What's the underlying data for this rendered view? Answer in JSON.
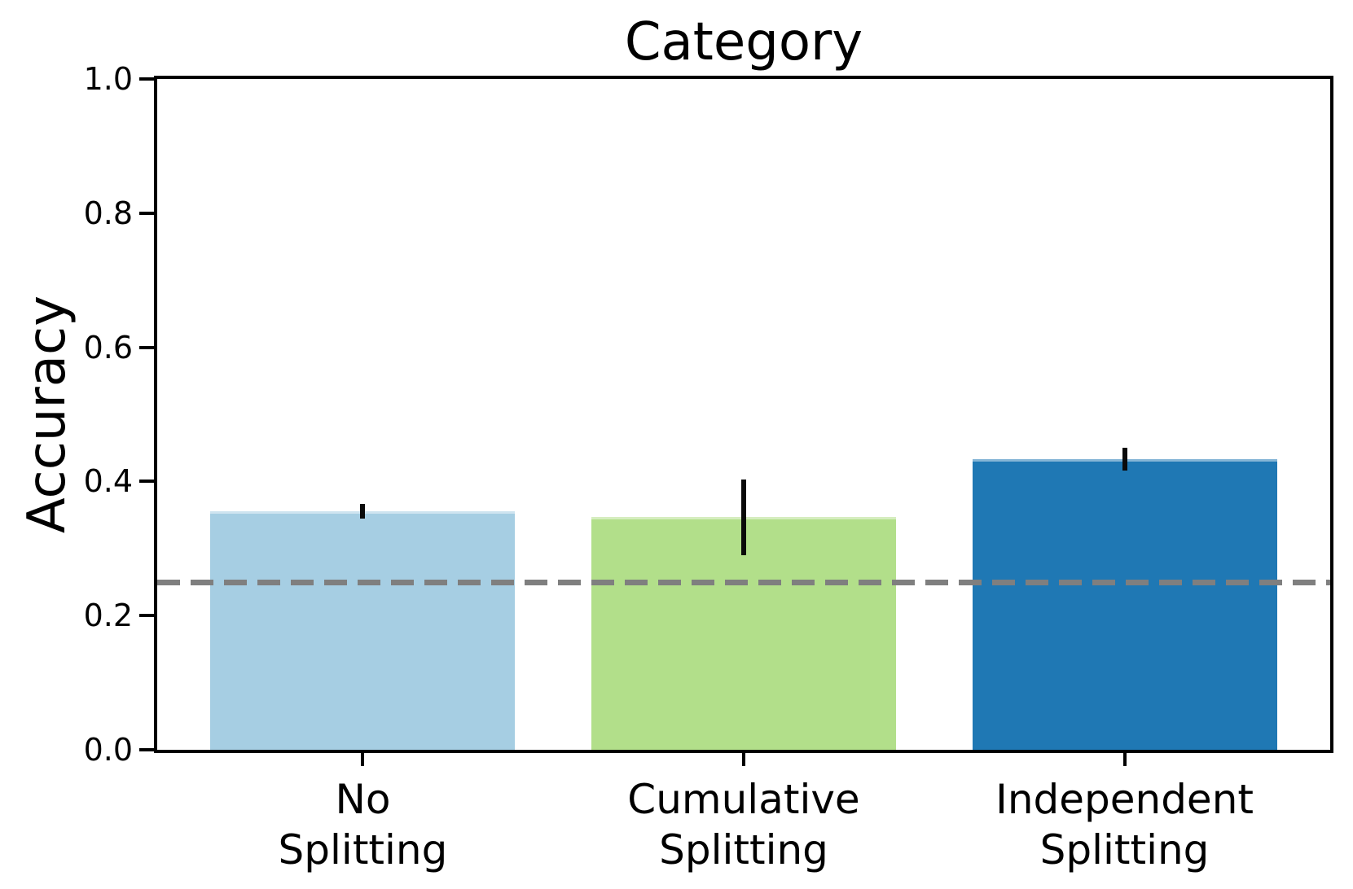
{
  "chart_data": {
    "type": "bar",
    "title": "Category",
    "ylabel": "Accuracy",
    "xlabel": "",
    "categories": [
      "No\nSplitting",
      "Cumulative\nSplitting",
      "Independent\nSplitting"
    ],
    "values": [
      0.356,
      0.347,
      0.433
    ],
    "error_low": [
      0.345,
      0.29,
      0.416
    ],
    "error_high": [
      0.366,
      0.403,
      0.45
    ],
    "bar_colors": [
      "#a6cee3",
      "#b2df8a",
      "#1f78b4"
    ],
    "error_bar_color": "#0a0a0a",
    "chance_line": {
      "y": 0.25,
      "color": "#7f7f7f",
      "style": "dashed"
    },
    "ylim": [
      0.0,
      1.0
    ],
    "yticks": [
      0.0,
      0.2,
      0.4,
      0.6,
      0.8,
      1.0
    ],
    "ytick_labels": [
      "0.0",
      "0.2",
      "0.4",
      "0.6",
      "0.8",
      "1.0"
    ],
    "x_range": [
      -0.54,
      2.54
    ],
    "bar_width": 0.8,
    "grid": false
  }
}
